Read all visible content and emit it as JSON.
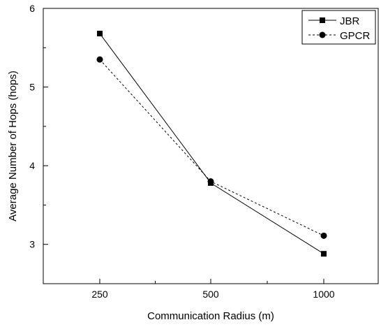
{
  "chart_data": {
    "type": "line",
    "title": "",
    "xlabel": "Communication Radius  (m)",
    "ylabel": "Average Number of Hops  (hops)",
    "categories": [
      "250",
      "500",
      "1000"
    ],
    "ylim": [
      2.5,
      6
    ],
    "yticks": [
      "3",
      "4",
      "5",
      "6"
    ],
    "grid": false,
    "legend_position": "top-right",
    "series": [
      {
        "name": "JBR",
        "values": [
          5.68,
          3.78,
          2.88
        ],
        "line_style": "solid",
        "marker": "square",
        "color": "#000000"
      },
      {
        "name": "GPCR",
        "values": [
          5.35,
          3.8,
          3.11
        ],
        "line_style": "dashed",
        "marker": "circle",
        "color": "#000000"
      }
    ]
  }
}
